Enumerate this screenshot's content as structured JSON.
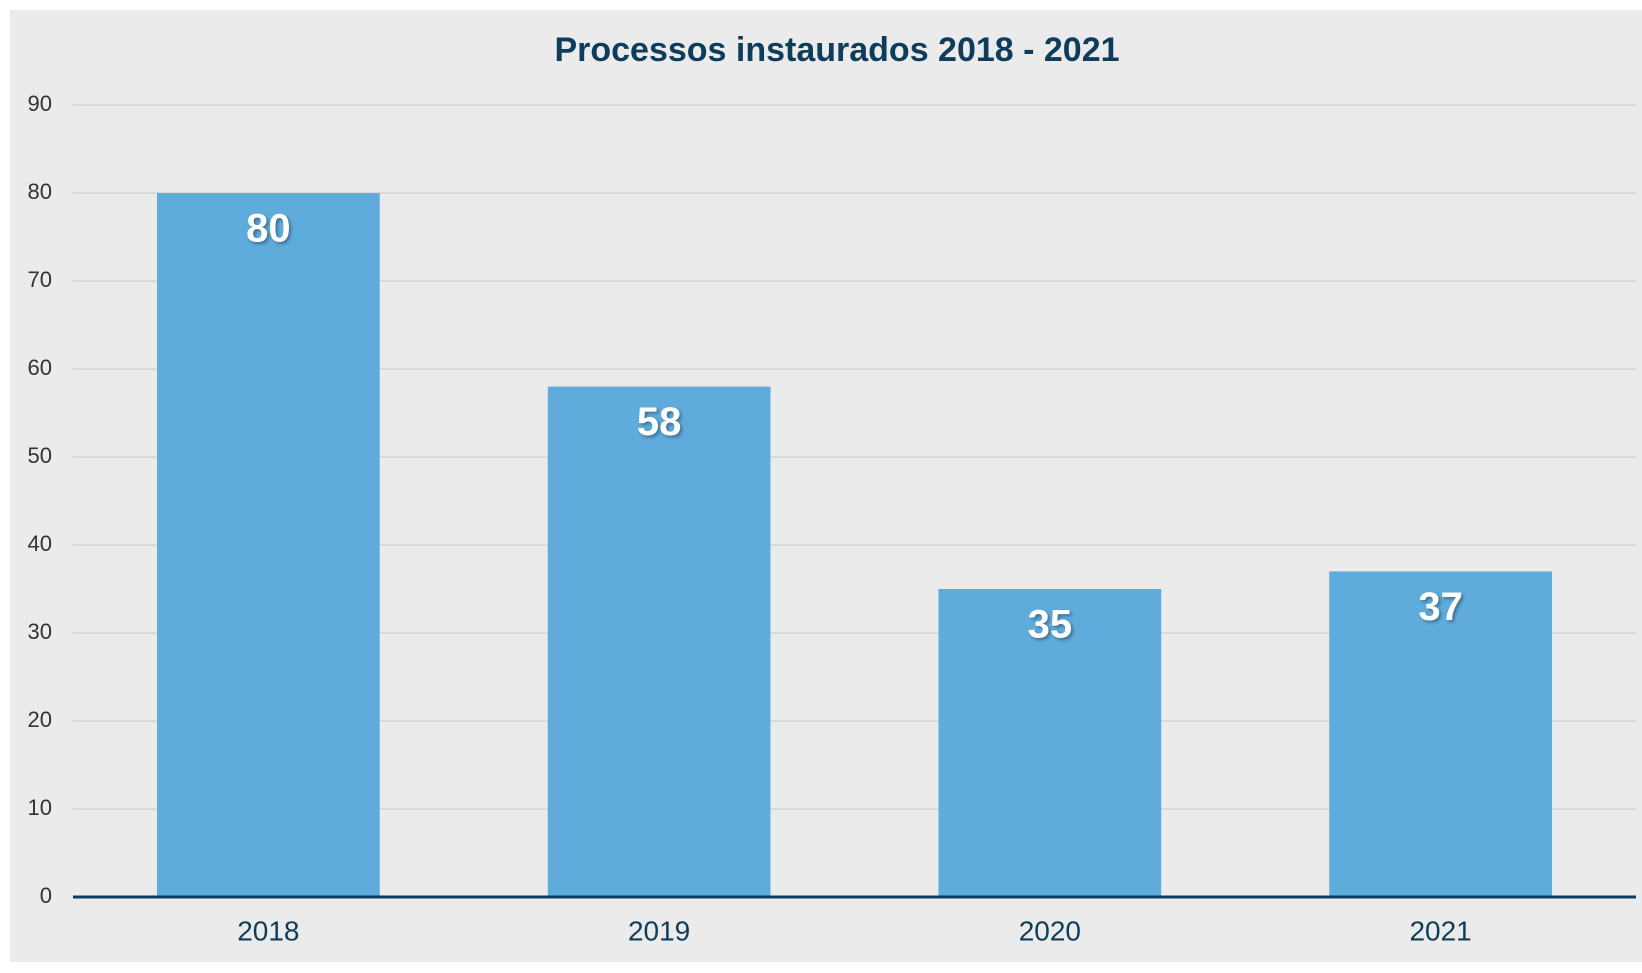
{
  "chart_data": {
    "type": "bar",
    "title": "Processos instaurados 2018 - 2021",
    "categories": [
      "2018",
      "2019",
      "2020",
      "2021"
    ],
    "values": [
      80,
      58,
      35,
      37
    ],
    "color": "#5facdc",
    "ylim": [
      0,
      90
    ],
    "yticks": [
      0,
      10,
      20,
      30,
      40,
      50,
      60,
      70,
      80,
      90
    ],
    "grid": true
  }
}
